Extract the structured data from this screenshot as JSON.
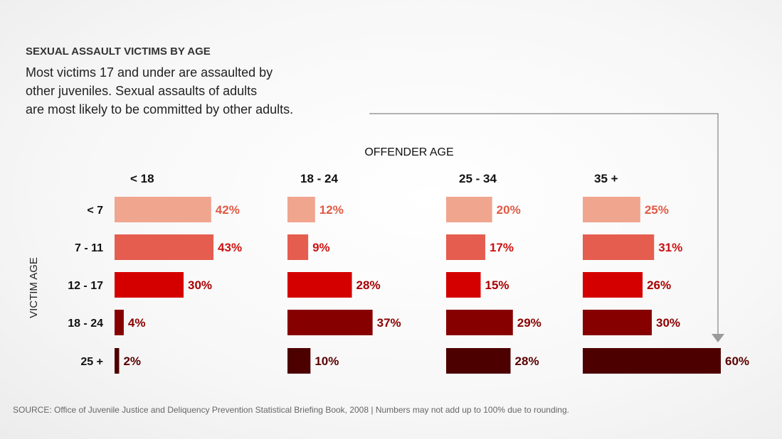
{
  "kicker": "SEXUAL ASSAULT VICTIMS BY AGE",
  "subtitle": [
    "Most victims 17 and under are assaulted by",
    "other juveniles. Sexual assaults of adults",
    "are most likely to be committed by other adults."
  ],
  "source": "SOURCE: Office of Juvenile Justice and Deliquency Prevention Statistical Briefing Book, 2008 | Numbers may not add up to 100% due to rounding.",
  "chart_data": {
    "type": "bar",
    "orientation": "horizontal",
    "title": "SEXUAL ASSAULT VICTIMS BY AGE",
    "column_axis_label": "OFFENDER AGE",
    "row_axis_label": "VICTIM AGE",
    "columns": [
      "< 18",
      "18 - 24",
      "25 - 34",
      "35 +"
    ],
    "rows": [
      "< 7",
      "7 - 11",
      "12 - 17",
      "18 - 24",
      "25 +"
    ],
    "row_colors": [
      "#f0a58e",
      "#e55d4f",
      "#d40000",
      "#870000",
      "#4d0000"
    ],
    "label_colors": [
      "#e05a45",
      "#cc1212",
      "#a80000",
      "#8a0000",
      "#5a0000"
    ],
    "values": [
      [
        42,
        12,
        20,
        25
      ],
      [
        43,
        9,
        17,
        31
      ],
      [
        30,
        28,
        15,
        26
      ],
      [
        4,
        37,
        29,
        30
      ],
      [
        2,
        10,
        28,
        60
      ]
    ],
    "unit": "%",
    "xlim": [
      0,
      60
    ]
  }
}
